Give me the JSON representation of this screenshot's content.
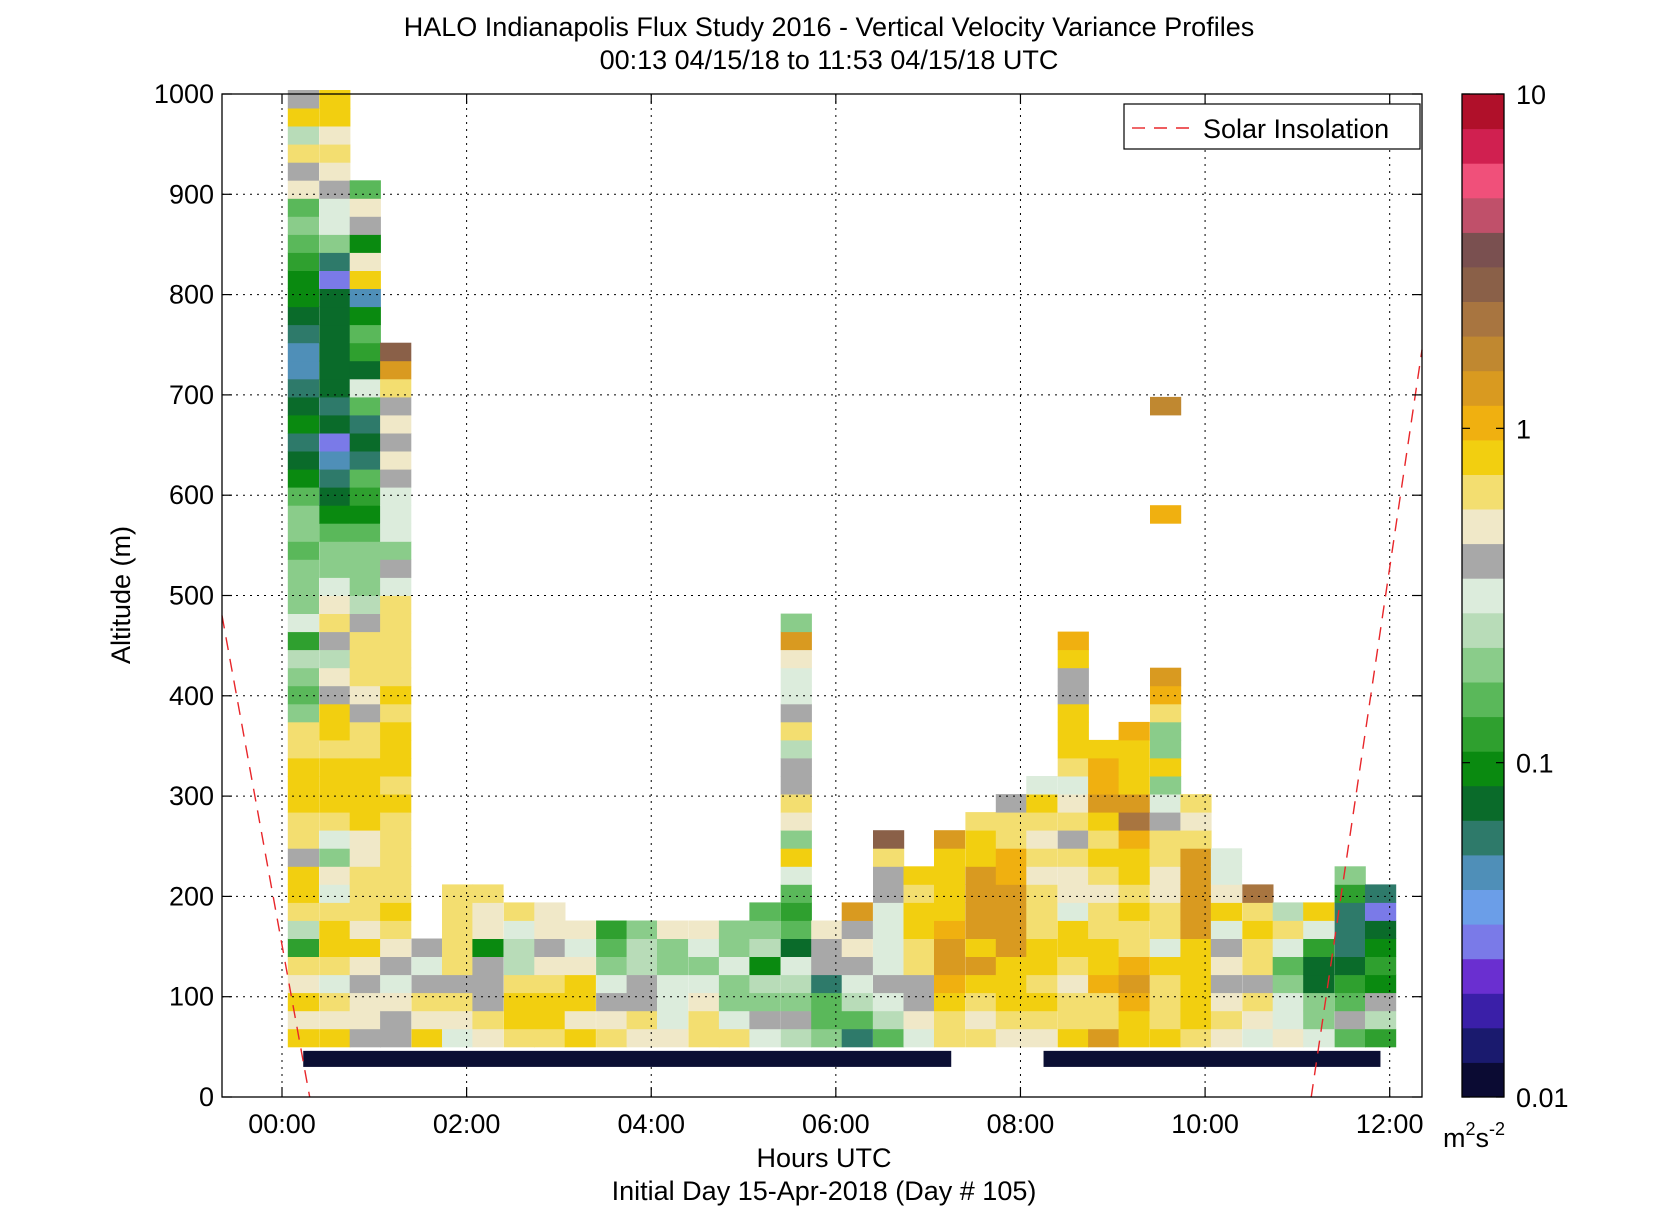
{
  "chart_data": {
    "type": "heatmap",
    "title": "HALO Indianapolis Flux Study 2016 - Vertical Velocity Variance Profiles",
    "subtitle": "00:13 04/15/18 to 11:53 04/15/18  UTC",
    "xlabel": "Hours UTC",
    "xlabel2": "Initial Day 15-Apr-2018 (Day # 105)",
    "ylabel": "Altitude (m)",
    "xlim": [
      -0.65,
      12.35
    ],
    "ylim": [
      0,
      1000
    ],
    "x_ticks": [
      {
        "value": 0,
        "label": "00:00"
      },
      {
        "value": 2,
        "label": "02:00"
      },
      {
        "value": 4,
        "label": "04:00"
      },
      {
        "value": 6,
        "label": "06:00"
      },
      {
        "value": 8,
        "label": "08:00"
      },
      {
        "value": 10,
        "label": "10:00"
      },
      {
        "value": 12,
        "label": "12:00"
      }
    ],
    "y_ticks": [
      {
        "value": 0,
        "label": "0"
      },
      {
        "value": 100,
        "label": "100"
      },
      {
        "value": 200,
        "label": "200"
      },
      {
        "value": 300,
        "label": "300"
      },
      {
        "value": 400,
        "label": "400"
      },
      {
        "value": 500,
        "label": "500"
      },
      {
        "value": 600,
        "label": "600"
      },
      {
        "value": 700,
        "label": "700"
      },
      {
        "value": 800,
        "label": "800"
      },
      {
        "value": 900,
        "label": "900"
      },
      {
        "value": 1000,
        "label": "1000"
      }
    ],
    "grid": true,
    "colorbar": {
      "scale": "log",
      "range": [
        0.01,
        10
      ],
      "ticks": [
        {
          "value": 0.01,
          "label": "0.01"
        },
        {
          "value": 0.1,
          "label": "0.1"
        },
        {
          "value": 1,
          "label": "1"
        },
        {
          "value": 10,
          "label": "10"
        }
      ],
      "unit_label": "m",
      "unit_exp1": "2",
      "unit_mid": "s",
      "unit_exp2": "-2",
      "colors": [
        "#0b0b33",
        "#1a1a6e",
        "#3a1fa8",
        "#6a2fd0",
        "#7a7ae8",
        "#6b9ee8",
        "#4f8fb8",
        "#2e7a6a",
        "#0a6b2a",
        "#0a8a10",
        "#2fa02f",
        "#5ab85a",
        "#8acc8a",
        "#b8dcb8",
        "#dcecdc",
        "#a8a8a8",
        "#f0e8c8",
        "#f3de70",
        "#f2cf10",
        "#f0b010",
        "#d99a20",
        "#c08830",
        "#a87540",
        "#8a6048",
        "#7a5050",
        "#c0506a",
        "#f0507a",
        "#d02050",
        "#b0102a"
      ]
    },
    "legend": {
      "label": "Solar Insolation",
      "placement": "top-right"
    },
    "solar_insolation": {
      "left": [
        [
          -0.65,
          480
        ],
        [
          0.3,
          0
        ]
      ],
      "right": [
        [
          11.15,
          0
        ],
        [
          12.35,
          745
        ]
      ]
    },
    "data_coverage_bars": [
      [
        0.23,
        7.25
      ],
      [
        8.25,
        11.9
      ]
    ],
    "range_gates_m": [
      50,
      68,
      86,
      104,
      122,
      140,
      158,
      176,
      194,
      212,
      230,
      248,
      266,
      284,
      302,
      320,
      338,
      356,
      374,
      392,
      410,
      428,
      446,
      464,
      482,
      500,
      518,
      536,
      554,
      572,
      590,
      608,
      626,
      644,
      662,
      680,
      698,
      716,
      734,
      752,
      770,
      788,
      806,
      824,
      842,
      860,
      878,
      896,
      914,
      932,
      950,
      968,
      986
    ],
    "profiles": [
      {
        "t": 0.23,
        "v": [
          0.8,
          0.55,
          0.8,
          0.55,
          0.7,
          0.12,
          0.25,
          0.6,
          0.8,
          0.8,
          0.45,
          0.7,
          0.65,
          0.8,
          0.75,
          0.8,
          0.65,
          0.6,
          0.2,
          0.15,
          0.2,
          0.25,
          0.12,
          0.3,
          0.2,
          0.2,
          0.2,
          0.15,
          0.22,
          0.2,
          0.16,
          0.1,
          0.08,
          0.06,
          0.1,
          0.07,
          0.06,
          0.05,
          0.05,
          0.06,
          0.07,
          0.09,
          0.1,
          0.12,
          0.17,
          0.2,
          0.16,
          0.55,
          0.45,
          0.6,
          0.25,
          0.8,
          0.45
        ]
      },
      {
        "t": 0.57,
        "v": [
          0.8,
          0.55,
          0.7,
          0.3,
          0.6,
          0.8,
          0.8,
          0.65,
          0.35,
          0.55,
          0.2,
          0.35,
          0.7,
          0.9,
          0.9,
          0.9,
          0.7,
          0.8,
          0.9,
          0.4,
          0.55,
          0.25,
          0.4,
          0.6,
          0.5,
          0.3,
          0.2,
          0.2,
          0.15,
          0.1,
          0.08,
          0.06,
          0.05,
          0.03,
          0.08,
          0.06,
          0.07,
          0.07,
          0.08,
          0.08,
          0.08,
          0.08,
          0.03,
          0.06,
          0.18,
          0.3,
          0.35,
          0.45,
          0.55,
          0.6,
          0.5,
          0.9,
          0.9
        ]
      },
      {
        "t": 0.9,
        "v": [
          0.45,
          0.55,
          0.55,
          0.38,
          0.55,
          0.9,
          0.55,
          0.6,
          0.6,
          0.6,
          0.5,
          0.5,
          0.75,
          0.9,
          0.85,
          0.9,
          0.7,
          0.6,
          0.4,
          0.55,
          0.6,
          0.6,
          0.6,
          0.45,
          0.25,
          0.2,
          0.2,
          0.18,
          0.16,
          0.1,
          0.12,
          0.15,
          0.06,
          0.08,
          0.06,
          0.15,
          0.32,
          0.08,
          0.12,
          0.15,
          0.1,
          0.05,
          0.9,
          0.55,
          0.1,
          0.4,
          0.55,
          0.15
        ]
      },
      {
        "t": 1.23,
        "v": [
          0.45,
          0.4,
          0.55,
          0.35,
          0.4,
          0.55,
          0.65,
          0.8,
          0.6,
          0.6,
          0.6,
          0.6,
          0.7,
          0.8,
          0.7,
          0.9,
          0.8,
          0.9,
          0.7,
          0.9,
          0.6,
          0.6,
          0.6,
          0.6,
          0.6,
          0.33,
          0.4,
          0.2,
          0.3,
          0.3,
          0.3,
          0.4,
          0.55,
          0.45,
          0.55,
          0.45,
          0.6,
          1.3,
          2.5
        ]
      },
      {
        "t": 1.57,
        "v": [
          0.75,
          0.55,
          0.6,
          0.45,
          0.3,
          0.4
        ]
      },
      {
        "t": 1.9,
        "v": [
          0.3,
          0.55,
          0.6,
          0.45,
          0.6,
          0.6,
          0.6,
          0.6,
          0.6
        ]
      },
      {
        "t": 2.23,
        "v": [
          0.55,
          0.6,
          0.4,
          0.45,
          0.4,
          0.1,
          0.55,
          0.55,
          0.6
        ]
      },
      {
        "t": 2.57,
        "v": [
          0.6,
          0.8,
          0.8,
          0.6,
          0.25,
          0.25,
          0.3,
          0.6
        ]
      },
      {
        "t": 2.9,
        "v": [
          0.7,
          0.8,
          0.9,
          0.6,
          0.55,
          0.4,
          0.5,
          0.55
        ]
      },
      {
        "t": 3.23,
        "v": [
          0.8,
          0.55,
          0.8,
          0.9,
          0.55,
          0.3,
          0.55
        ]
      },
      {
        "t": 3.57,
        "v": [
          0.6,
          0.55,
          0.4,
          0.35,
          0.2,
          0.15,
          0.13
        ]
      },
      {
        "t": 3.9,
        "v": [
          0.55,
          0.6,
          0.4,
          0.4,
          0.25,
          0.25,
          0.18
        ]
      },
      {
        "t": 4.23,
        "v": [
          0.5,
          0.33,
          0.35,
          0.35,
          0.2,
          0.2,
          0.55
        ]
      },
      {
        "t": 4.57,
        "v": [
          0.7,
          0.65,
          0.55,
          0.35,
          0.22,
          0.35,
          0.55
        ]
      },
      {
        "t": 4.9,
        "v": [
          0.7,
          0.33,
          0.2,
          0.22,
          0.35,
          0.22,
          0.2
        ]
      },
      {
        "t": 5.23,
        "v": [
          0.33,
          0.4,
          0.2,
          0.25,
          0.1,
          0.25,
          0.2,
          0.15
        ]
      },
      {
        "t": 5.57,
        "v": [
          0.25,
          0.4,
          0.2,
          0.25,
          0.33,
          0.08,
          0.15,
          0.12,
          0.15,
          0.3,
          0.8,
          0.2,
          0.55,
          0.6,
          0.4,
          0.45,
          0.25,
          0.6,
          0.4,
          0.3,
          0.3,
          0.55,
          1.3,
          0.2
        ]
      },
      {
        "t": 5.9,
        "v": [
          0.2,
          0.15,
          0.15,
          0.06,
          0.45,
          0.45,
          0.55
        ]
      },
      {
        "t": 6.23,
        "v": [
          0.06,
          0.15,
          0.25,
          0.3,
          0.4,
          0.55,
          0.45,
          1.3
        ]
      },
      {
        "t": 6.57,
        "v": [
          0.15,
          0.25,
          0.3,
          0.4,
          0.35,
          0.35,
          0.35,
          0.35,
          0.4,
          0.45,
          0.6,
          2.5
        ]
      },
      {
        "t": 6.9,
        "v": [
          0.3,
          0.55,
          0.45,
          0.45,
          0.6,
          0.7,
          0.8,
          0.8,
          0.7,
          0.9
        ]
      },
      {
        "t": 7.23,
        "v": [
          0.6,
          0.7,
          0.9,
          1.1,
          1.2,
          1.3,
          1.1,
          0.9,
          0.9,
          0.8,
          0.9,
          1.2
        ]
      },
      {
        "t": 7.57,
        "v": [
          0.6,
          0.55,
          0.65,
          0.8,
          1.3,
          0.9,
          1.2,
          1.3,
          1.3,
          1.2,
          0.9,
          0.8,
          0.6
        ]
      },
      {
        "t": 7.9,
        "v": [
          0.55,
          0.6,
          0.8,
          0.8,
          0.9,
          1.2,
          1.3,
          1.2,
          1.3,
          1.1,
          1.0,
          0.7,
          0.6,
          0.4
        ]
      },
      {
        "t": 8.23,
        "v": [
          0.55,
          0.6,
          0.8,
          0.7,
          0.9,
          0.8,
          0.7,
          0.6,
          0.65,
          0.55,
          0.6,
          0.55,
          0.7,
          0.75,
          0.35
        ]
      },
      {
        "t": 8.57,
        "v": [
          0.8,
          0.6,
          0.7,
          0.55,
          0.6,
          0.9,
          0.75,
          0.32,
          0.55,
          0.55,
          0.6,
          0.45,
          0.6,
          0.5,
          0.35,
          0.6,
          0.85,
          0.8,
          0.9,
          0.45,
          0.4,
          0.85,
          1.1
        ]
      },
      {
        "t": 8.9,
        "v": [
          1.3,
          0.6,
          0.7,
          1.1,
          0.9,
          0.8,
          0.6,
          0.7,
          0.55,
          0.65,
          0.8,
          0.7,
          0.9,
          1.2,
          1.1,
          1.1,
          0.9
        ]
      },
      {
        "t": 9.23,
        "v": [
          0.9,
          0.8,
          1.1,
          1.2,
          1.1,
          0.6,
          0.7,
          0.9,
          0.6,
          0.8,
          0.9,
          1.1,
          2.0,
          1.3,
          0.9,
          0.9,
          0.9,
          1.0
        ]
      },
      {
        "t": 9.57,
        "v": [
          0.8,
          0.6,
          0.7,
          0.6,
          0.8,
          0.35,
          0.6,
          0.6,
          0.55,
          0.5,
          0.6,
          0.7,
          0.4,
          0.35,
          0.2,
          0.8,
          0.2,
          0.2,
          0.65,
          0.95,
          1.3,
          0,
          0,
          0,
          0,
          0,
          0,
          0,
          0,
          0.95,
          0,
          0,
          0,
          0,
          0,
          1.8
        ]
      },
      {
        "t": 9.9,
        "v": [
          0.7,
          0.8,
          0.8,
          0.9,
          0.8,
          0.9,
          1.2,
          1.3,
          1.2,
          1.2,
          1.3,
          0.7,
          0.55,
          0.6
        ]
      },
      {
        "t": 10.23,
        "v": [
          0.5,
          0.6,
          0.55,
          0.45,
          0.5,
          0.45,
          0.3,
          0.8,
          0.55,
          0.3,
          0.3
        ]
      },
      {
        "t": 10.57,
        "v": [
          0.35,
          0.55,
          0.6,
          0.45,
          0.6,
          0.6,
          0.9,
          0.6,
          2.0
        ]
      },
      {
        "t": 10.9,
        "v": [
          0.5,
          0.3,
          0.3,
          0.2,
          0.15,
          0.32,
          0.6,
          0.25
        ]
      },
      {
        "t": 11.23,
        "v": [
          0.35,
          0.2,
          0.2,
          0.08,
          0.08,
          0.12,
          0.3,
          0.85
        ]
      },
      {
        "t": 11.57,
        "v": [
          0.15,
          0.4,
          0.15,
          0.12,
          0.08,
          0.06,
          0.06,
          0.06,
          0.12,
          0.18
        ]
      },
      {
        "t": 11.9,
        "v": [
          0.12,
          0.25,
          0.45,
          0.1,
          0.12,
          0.1,
          0.08,
          0.03,
          0.06
        ]
      }
    ]
  }
}
